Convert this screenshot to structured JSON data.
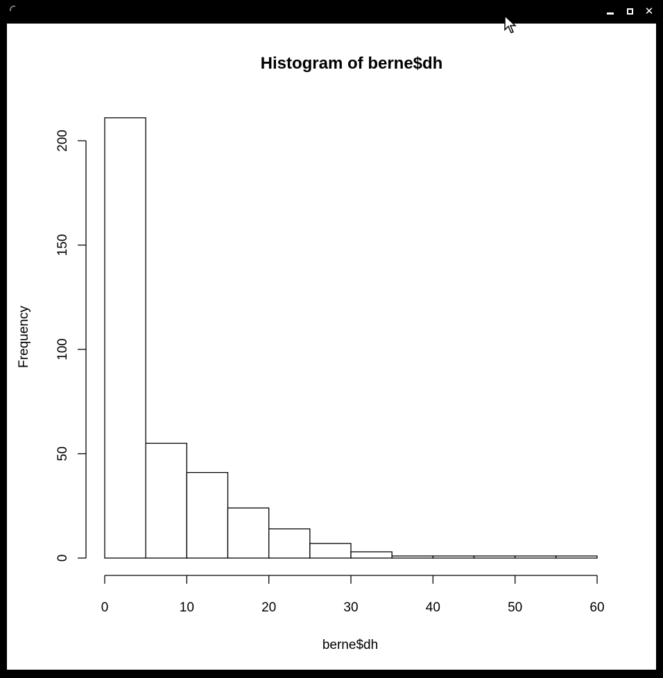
{
  "window": {
    "controls": [
      "minimize",
      "maximize",
      "close"
    ],
    "close_glyph": "✕"
  },
  "chart_data": {
    "type": "bar",
    "title": "Histogram of berne$dh",
    "xlabel": "berne$dh",
    "ylabel": "Frequency",
    "bins": [
      {
        "x0": 0,
        "x1": 5,
        "count": 211
      },
      {
        "x0": 5,
        "x1": 10,
        "count": 55
      },
      {
        "x0": 10,
        "x1": 15,
        "count": 41
      },
      {
        "x0": 15,
        "x1": 20,
        "count": 24
      },
      {
        "x0": 20,
        "x1": 25,
        "count": 14
      },
      {
        "x0": 25,
        "x1": 30,
        "count": 7
      },
      {
        "x0": 30,
        "x1": 35,
        "count": 3
      },
      {
        "x0": 35,
        "x1": 40,
        "count": 1
      },
      {
        "x0": 40,
        "x1": 45,
        "count": 1
      },
      {
        "x0": 45,
        "x1": 50,
        "count": 1
      },
      {
        "x0": 50,
        "x1": 55,
        "count": 1
      },
      {
        "x0": 55,
        "x1": 60,
        "count": 1
      }
    ],
    "xlim": [
      0,
      60
    ],
    "ylim": [
      0,
      211
    ],
    "x_ticks": [
      0,
      10,
      20,
      30,
      40,
      50,
      60
    ],
    "y_ticks": [
      0,
      50,
      100,
      150,
      200
    ],
    "grid": false,
    "legend": "none",
    "bar_fill": "#ffffff",
    "bar_stroke": "#000000"
  }
}
